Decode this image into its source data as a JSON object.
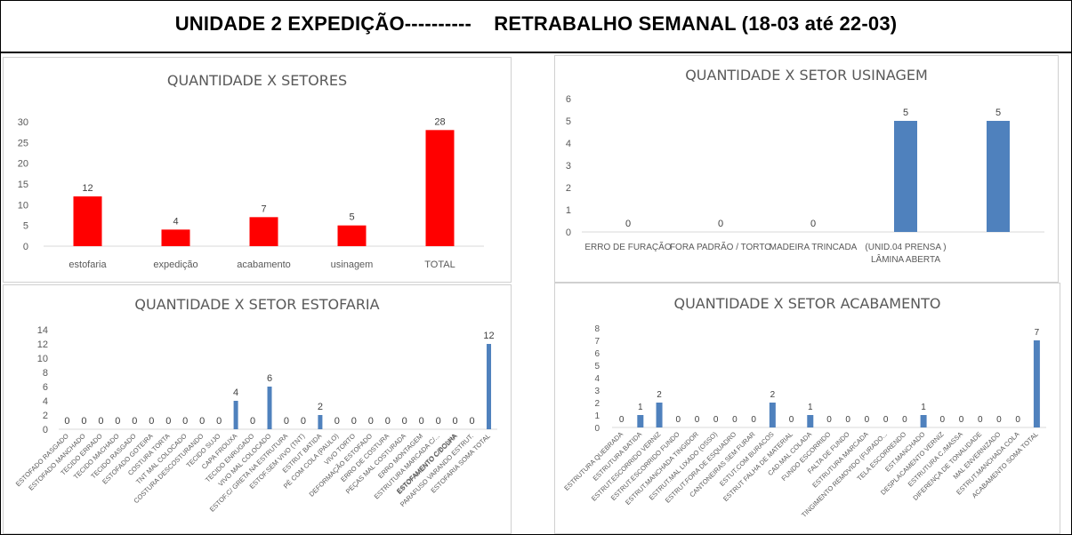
{
  "header": {
    "title": "UNIDADE 2 EXPEDIÇÃO----------    RETRABALHO SEMANAL (18-03 até 22-03)"
  },
  "chart_data": [
    {
      "id": "setores",
      "type": "bar",
      "title": "QUANTIDADE X SETORES",
      "categories": [
        "estofaria",
        "expedição",
        "acabamento",
        "usinagem",
        "TOTAL"
      ],
      "values": [
        12,
        4,
        7,
        5,
        28
      ],
      "ylim": [
        0,
        30
      ],
      "yticks": [
        0,
        5,
        10,
        15,
        20,
        25,
        30
      ],
      "color": "#ff0000",
      "grid": false,
      "legend": "none"
    },
    {
      "id": "usinagem",
      "type": "bar",
      "title": "QUANTIDADE X SETOR USINAGEM",
      "categories": [
        "ERRO DE FURAÇÃO",
        "FORA PADRÃO / TORTO",
        "MADEIRA TRINCADA",
        "(UNID.04 PRENSA ) LÂMINA ABERTA",
        ""
      ],
      "values": [
        0,
        0,
        0,
        5,
        5
      ],
      "ylim": [
        0,
        6
      ],
      "yticks": [
        0,
        1,
        2,
        3,
        4,
        5,
        6
      ],
      "color": "#4f81bd",
      "grid": false,
      "legend": "none"
    },
    {
      "id": "estofaria",
      "type": "bar",
      "title": "QUANTIDADE X SETOR ESTOFARIA",
      "categories": [
        "ESTOFADO RASGADO",
        "ESTOFADO MANCHADO",
        "TECIDO ERRADO",
        "TECIDO MACHADO",
        "TECIDO RASGADO",
        "ESTOFADO GOTEIRA",
        "COSTURA TORTA",
        "TNT MAL COLOCADO",
        "COSTURA DESCOSTURANDO",
        "TECIDO SUJO",
        "CAPA FROUXA",
        "TECIDO ENRUGADO",
        "VIVO MAL COLOCADO",
        "ESTOF.C/ GRETA NA ESTRUTURA",
        "ESTOF.SEM VIVO (TNT)",
        "ESTRUT BATIDA",
        "PÉ COM COLA (PAULO)",
        "VIVO TORTO",
        "DEFORMAÇÃO ESTOFADO",
        "ERRO DE COSTURA",
        "PEÇAS MAL COSTURADA",
        "ERRO MONTAGEM",
        "ESTRUTURA MARCADA C/...",
        "ESTOFAMENTO C/BOLHA",
        "PARAFUSO VARANDO ESTRUT.",
        "ESTOFARIA SOMA TOTAL"
      ],
      "values": [
        0,
        0,
        0,
        0,
        0,
        0,
        0,
        0,
        0,
        0,
        4,
        0,
        6,
        0,
        0,
        2,
        0,
        0,
        0,
        0,
        0,
        0,
        0,
        0,
        0,
        12
      ],
      "hidden_labels": [
        22,
        23
      ],
      "ylim": [
        0,
        14
      ],
      "yticks": [
        0,
        2,
        4,
        6,
        8,
        10,
        12,
        14
      ],
      "color": "#4f81bd",
      "grid": false,
      "legend": "none",
      "extra_label": "ESTOFAMENTO C/DOBRA"
    },
    {
      "id": "acabamento",
      "type": "bar",
      "title": "QUANTIDADE X SETOR ACABAMENTO",
      "categories": [
        "ESTRUTURA QUEBRADA",
        "ESTRUTURA BATIDA",
        "ESTRUT.ESCORRIDO VERNIZ",
        "ESTRUT.ESCORRIDO FUNDO",
        "ESTRUT.MANCHADA TINGIDOR",
        "ESTRUT.MAL LIXADO (OSSO)",
        "ESTRUT.FORA DE ESQUADRO",
        "CANTONEIRAS SEM FURAR",
        "ESTUT.COM BURACOS",
        "ESTRUT FALHA DE MATERIAL",
        "CAD.MAL COLADA",
        "FUNDO ESCORRIDO",
        "FALTA DE FUNDO",
        "ESTRUTURA MARCADA",
        "TINGIMENTO REMOVIDO (FURADO...",
        "TELA ESCORRENDO",
        "EST.MANCHADO",
        "DESPLACAMENTO VERNIZ",
        "ESTRUTURA C./MASSA",
        "DIFERENÇA DE TONALIDADE",
        "MAL ENVERNIZADO",
        "ESTRUT.MANCHADA COLA",
        "ACABAMENTO SOMA TOTAL"
      ],
      "values": [
        0,
        1,
        2,
        0,
        0,
        0,
        0,
        0,
        2,
        0,
        1,
        0,
        0,
        0,
        0,
        0,
        1,
        0,
        0,
        0,
        0,
        0,
        7
      ],
      "ylim": [
        0,
        8
      ],
      "yticks": [
        0,
        1,
        2,
        3,
        4,
        5,
        6,
        7,
        8
      ],
      "color": "#4f81bd",
      "grid": false,
      "legend": "none"
    }
  ]
}
